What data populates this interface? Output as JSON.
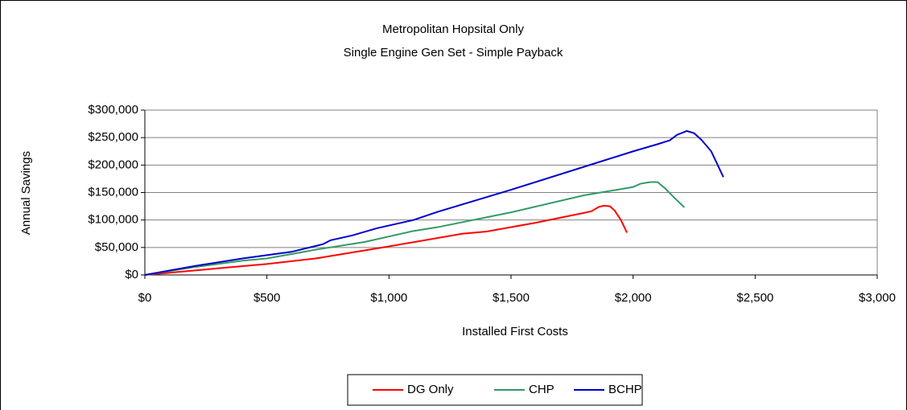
{
  "chart_data": {
    "type": "line",
    "title": "Metropolitan Hopsital Only",
    "subtitle": "Single Engine Gen Set - Simple Payback",
    "x_label": "Installed First Costs",
    "y_label": "Annual Savings",
    "xlim": [
      0,
      3000
    ],
    "xticks": [
      {
        "value": 0,
        "label": "$0"
      },
      {
        "value": 500,
        "label": "$500"
      },
      {
        "value": 1000,
        "label": "$1,000"
      },
      {
        "value": 1500,
        "label": "$1,500"
      },
      {
        "value": 2000,
        "label": "$2,000"
      },
      {
        "value": 2500,
        "label": "$2,500"
      },
      {
        "value": 3000,
        "label": "$3,000"
      }
    ],
    "ylim": [
      0,
      300000
    ],
    "yticks": [
      {
        "value": 0,
        "label": "$0"
      },
      {
        "value": 50000,
        "label": "$50,000"
      },
      {
        "value": 100000,
        "label": "$100,000"
      },
      {
        "value": 150000,
        "label": "$150,000"
      },
      {
        "value": 200000,
        "label": "$200,000"
      },
      {
        "value": 250000,
        "label": "$250,000"
      },
      {
        "value": 300000,
        "label": "$300,000"
      }
    ],
    "grid": true,
    "legend": "bottom",
    "series": [
      {
        "name": "DG Only",
        "color": "#ff0000",
        "x": [
          0,
          300,
          500,
          700,
          1000,
          1300,
          1400,
          1600,
          1800,
          1830,
          1860,
          1880,
          1905,
          1925,
          1950,
          1975
        ],
        "values": [
          0,
          12000,
          20000,
          30000,
          52000,
          75000,
          79000,
          95000,
          113000,
          116000,
          124000,
          126000,
          125000,
          117000,
          100000,
          77000
        ]
      },
      {
        "name": "CHP",
        "color": "#339966",
        "x": [
          0,
          200,
          400,
          500,
          700,
          900,
          1100,
          1200,
          1500,
          1800,
          2000,
          2030,
          2070,
          2100,
          2130,
          2170,
          2210
        ],
        "values": [
          0,
          14000,
          26000,
          30000,
          46000,
          60000,
          80000,
          87000,
          114000,
          145000,
          160000,
          166000,
          169000,
          169000,
          158000,
          140000,
          123000
        ]
      },
      {
        "name": "BCHP",
        "color": "#0000cc",
        "x": [
          0,
          200,
          400,
          600,
          730,
          760,
          850,
          950,
          1100,
          1200,
          1500,
          1800,
          2000,
          2100,
          2150,
          2180,
          2220,
          2250,
          2280,
          2320,
          2370
        ],
        "values": [
          0,
          16000,
          30000,
          42000,
          56000,
          63000,
          72000,
          85000,
          100000,
          115000,
          155000,
          197000,
          225000,
          238000,
          245000,
          255000,
          262000,
          258000,
          246000,
          225000,
          178000
        ]
      }
    ]
  }
}
